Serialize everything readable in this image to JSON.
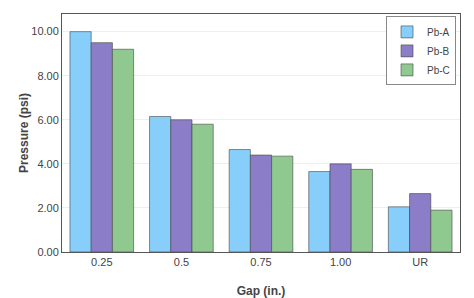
{
  "chart_data": {
    "type": "bar",
    "categories": [
      "0.25",
      "0.5",
      "0.75",
      "1.00",
      "UR"
    ],
    "series": [
      {
        "name": "Pb-A",
        "color": "#87CEFA",
        "values": [
          10.0,
          6.15,
          4.65,
          3.65,
          2.05
        ]
      },
      {
        "name": "Pb-B",
        "color": "#8B7DC8",
        "values": [
          9.5,
          6.0,
          4.4,
          4.0,
          2.65
        ]
      },
      {
        "name": "Pb-C",
        "color": "#90C990",
        "values": [
          9.2,
          5.8,
          4.35,
          3.75,
          1.9
        ]
      }
    ],
    "xlabel": "Gap (in.)",
    "ylabel": "Pressure (psi)",
    "ylim": [
      0,
      10.8
    ],
    "yticks": [
      {
        "value": 0,
        "label": "0.00"
      },
      {
        "value": 2,
        "label": "2.00"
      },
      {
        "value": 4,
        "label": "4.00"
      },
      {
        "value": 6,
        "label": "6.00"
      },
      {
        "value": 8,
        "label": "8.00"
      },
      {
        "value": 10,
        "label": "10.00"
      }
    ],
    "grid": true,
    "legend": "upper right"
  }
}
